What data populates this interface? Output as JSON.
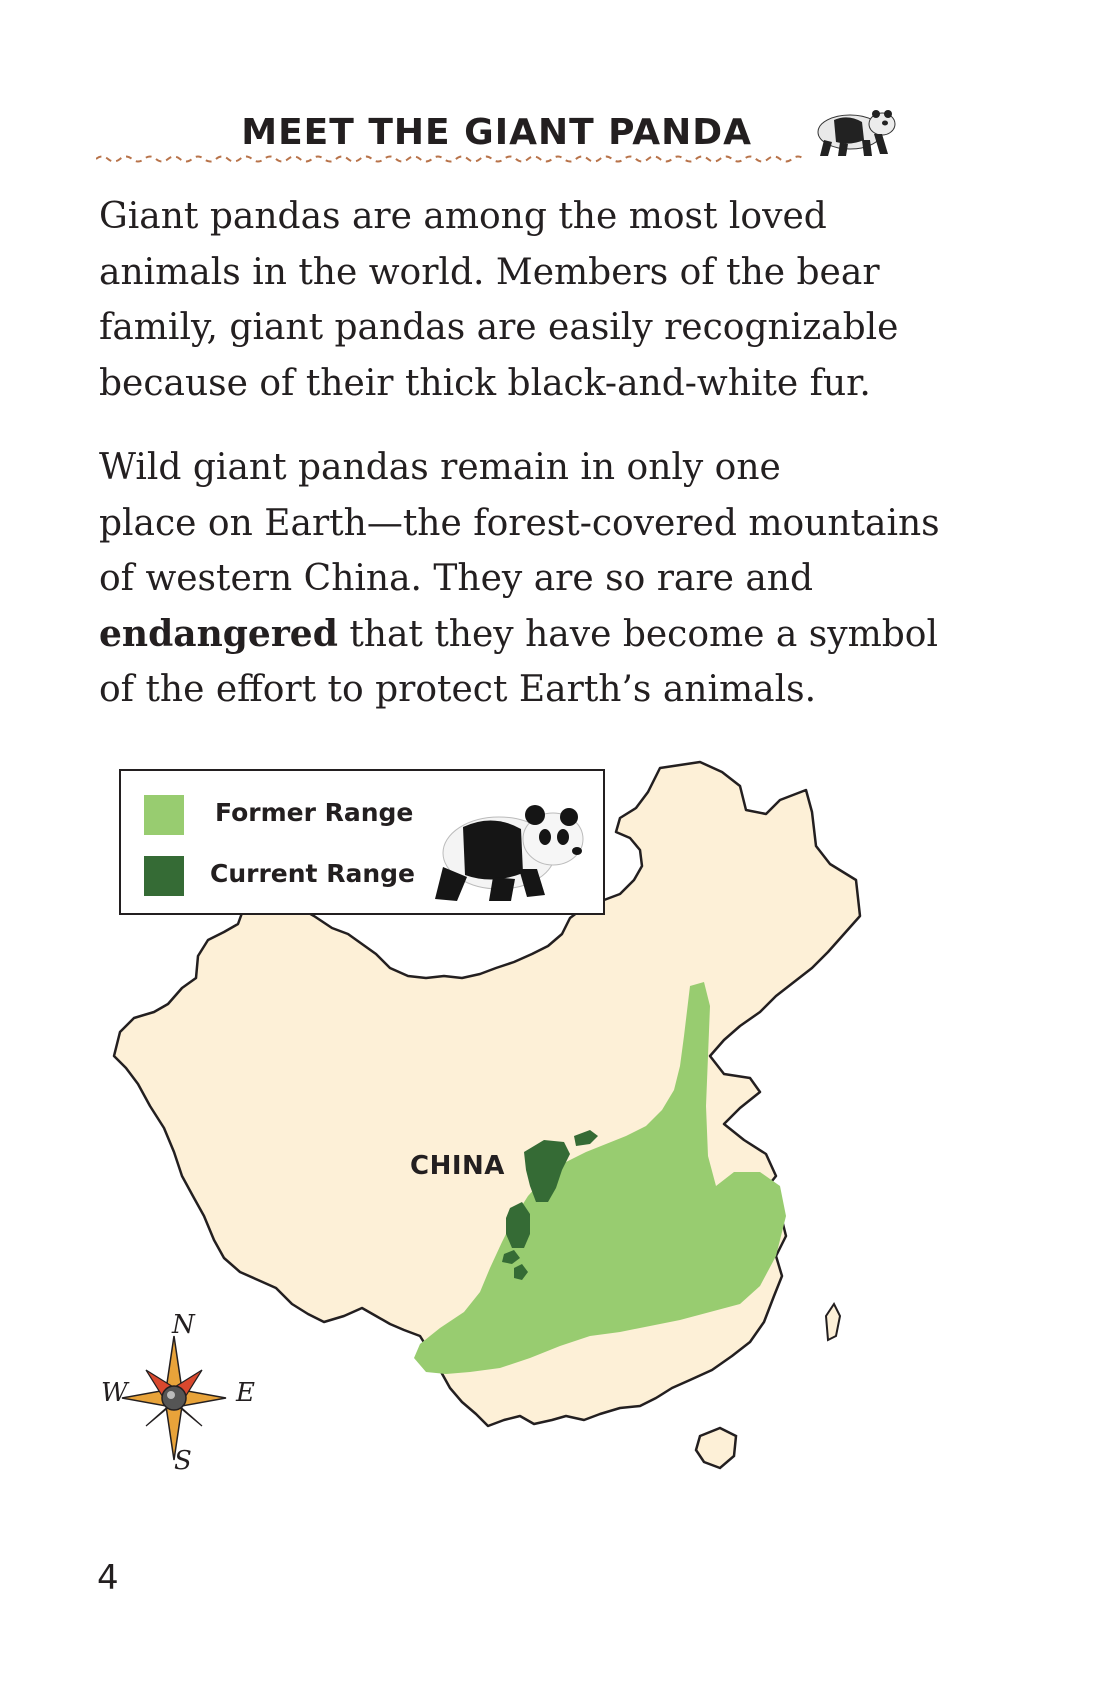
{
  "header": {
    "title": "Meet the Giant Panda",
    "icon": "walking-panda-icon"
  },
  "paragraphs": {
    "p1": [
      "Giant pandas are among the most loved",
      "animals in the world. Members of the bear",
      "family, giant pandas are easily recognizable",
      "because of their thick black-and-white fur."
    ],
    "p2": {
      "lines": [
        "Wild giant pandas remain in only one",
        "place on Earth—the forest-covered mountains",
        "of western China. They are so rare and"
      ],
      "bold_word": "endangered",
      "line4_rest": " that they have become a symbol",
      "line5": "of the effort to protect Earth’s animals."
    }
  },
  "map": {
    "country_label": "CHINA",
    "legend": {
      "former_label": "Former Range",
      "current_label": "Current Range",
      "former_color": "#98cc70",
      "current_color": "#356b35"
    },
    "land_color": "#fdf0d7",
    "compass": {
      "n": "N",
      "s": "S",
      "e": "E",
      "w": "W"
    }
  },
  "page_number": "4"
}
